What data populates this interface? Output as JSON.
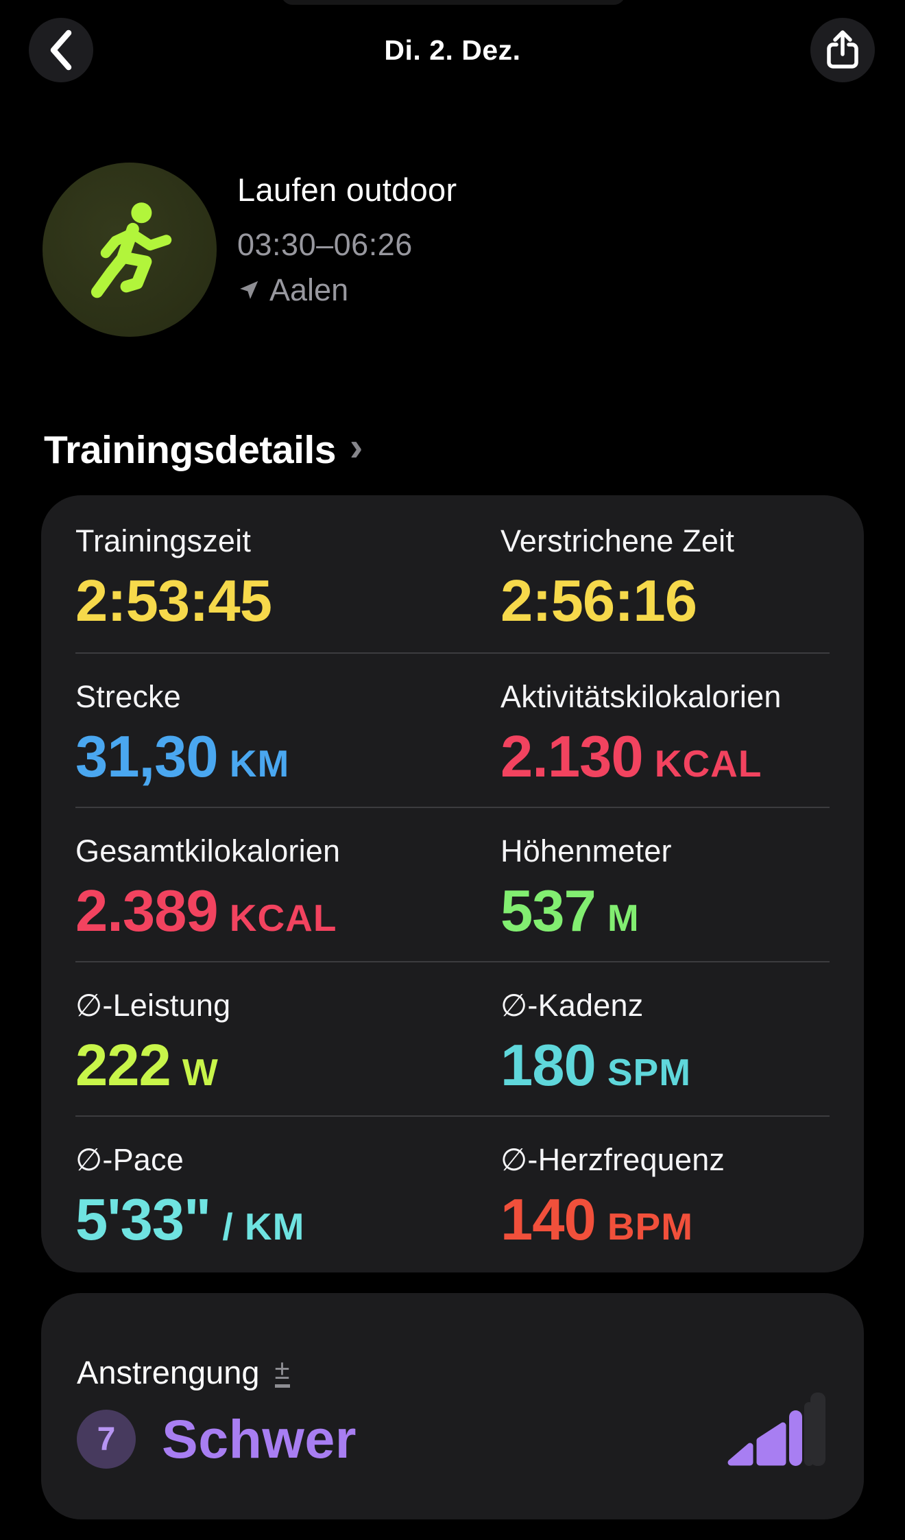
{
  "header": {
    "title": "Di. 2. Dez.",
    "back_label": "back",
    "share_label": "share"
  },
  "workout": {
    "activity": "Laufen outdoor",
    "time_range": "03:30–06:26",
    "location": "Aalen",
    "icon": "runner-icon",
    "icon_color": "#b2f53b",
    "icon_bg": "#2e3219"
  },
  "section": {
    "title": "Trainingsdetails",
    "chevron": "›"
  },
  "stats": {
    "items": [
      {
        "label": "Trainingszeit",
        "value": "2:53:45",
        "unit": "",
        "color": "#f6d94b"
      },
      {
        "label": "Verstrichene Zeit",
        "value": "2:56:16",
        "unit": "",
        "color": "#f6d94b"
      },
      {
        "label": "Strecke",
        "value": "31,30",
        "unit": "KM",
        "color": "#4aa7f0"
      },
      {
        "label": "Aktivitätskilokalorien",
        "value": "2.130",
        "unit": "KCAL",
        "color": "#f2435f"
      },
      {
        "label": "Gesamtkilokalorien",
        "value": "2.389",
        "unit": "KCAL",
        "color": "#f2435f"
      },
      {
        "label": "Höhenmeter",
        "value": "537",
        "unit": "M",
        "color": "#82ee71"
      },
      {
        "label": "∅-Leistung",
        "value": "222",
        "unit": "W",
        "color": "#c8f54a"
      },
      {
        "label": "∅-Kadenz",
        "value": "180",
        "unit": "SPM",
        "color": "#5fd7db"
      },
      {
        "label": "∅-Pace",
        "value": "5'33\"",
        "unit": "/ KM",
        "color": "#6fe3e1"
      },
      {
        "label": "∅-Herzfrequenz",
        "value": "140",
        "unit": "BPM",
        "color": "#f1503b"
      }
    ]
  },
  "effort": {
    "label": "Anstrengung",
    "adjust_symbol": "±",
    "rating": "7",
    "rating_label": "Schwer",
    "accent": "#a87ef2",
    "badge_bg": "#473a5e",
    "badge_fg": "#b795f2",
    "dim_bar": "#2b2b2e"
  }
}
